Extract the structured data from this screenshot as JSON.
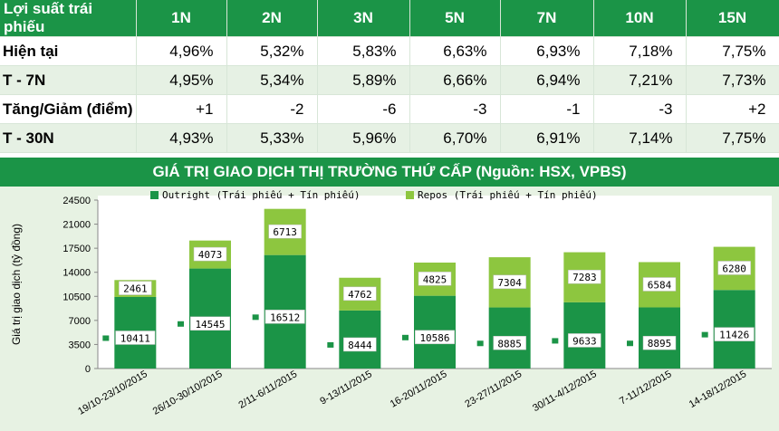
{
  "table": {
    "header": [
      "Lợi suất trái phiếu",
      "1N",
      "2N",
      "3N",
      "5N",
      "7N",
      "10N",
      "15N"
    ],
    "rows": [
      {
        "label": "Hiện tại",
        "values": [
          "4,96%",
          "5,32%",
          "5,83%",
          "6,63%",
          "6,93%",
          "7,18%",
          "7,75%"
        ]
      },
      {
        "label": "T - 7N",
        "values": [
          "4,95%",
          "5,34%",
          "5,89%",
          "6,66%",
          "6,94%",
          "7,21%",
          "7,73%"
        ]
      },
      {
        "label": "Tăng/Giảm (điểm)",
        "values": [
          "+1",
          "-2",
          "-6",
          "-3",
          "-1",
          "-3",
          "+2"
        ]
      },
      {
        "label": "T - 30N",
        "values": [
          "4,93%",
          "5,33%",
          "5,96%",
          "6,70%",
          "6,91%",
          "7,14%",
          "7,75%"
        ]
      }
    ]
  },
  "chart_title": "GIÁ TRỊ GIAO DỊCH THỊ TRƯỜNG THỨ CẤP (Nguồn: HSX, VPBS)",
  "chart_data": {
    "type": "bar",
    "stacked": true,
    "categories": [
      "19/10-23/10/2015",
      "26/10-30/10/2015",
      "2/11-6/11/2015",
      "9-13/11/2015",
      "16-20/11/2015",
      "23-27/11/2015",
      "30/11-4/12/2015",
      "7-11/12/2015",
      "14-18/12/2015"
    ],
    "series": [
      {
        "name": "Outright (Trái phiếu + Tín phiếu)",
        "color": "#1b9447",
        "values": [
          10411,
          14545,
          16512,
          8444,
          10586,
          8885,
          9633,
          8895,
          11426
        ]
      },
      {
        "name": "Repos (Trái phiếu + Tín phiếu)",
        "color": "#8dc63f",
        "values": [
          2461,
          4073,
          6713,
          4762,
          4825,
          7304,
          7283,
          6584,
          6280
        ]
      }
    ],
    "ylabel": "Giá trị giao dịch (tỷ đồng)",
    "ylim": [
      0,
      24500
    ],
    "yticks": [
      0,
      3500,
      7000,
      10500,
      14000,
      17500,
      21000,
      24500
    ],
    "legend": "top"
  }
}
